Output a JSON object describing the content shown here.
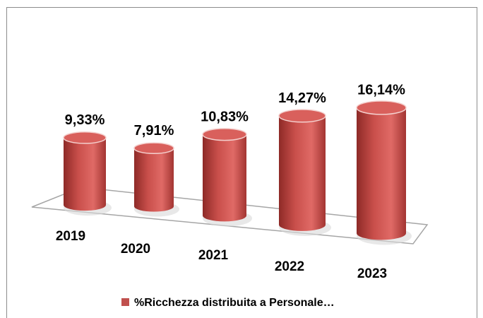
{
  "chart_data": {
    "type": "bar",
    "categories": [
      "2019",
      "2020",
      "2021",
      "2022",
      "2023"
    ],
    "values": [
      9.33,
      7.91,
      10.83,
      14.27,
      16.14
    ],
    "value_labels": [
      "9,33%",
      "7,91%",
      "10,83%",
      "14,27%",
      "16,14%"
    ],
    "series_name": "%Ricchezza distribuita a Personale…",
    "color": "#c0504d"
  }
}
